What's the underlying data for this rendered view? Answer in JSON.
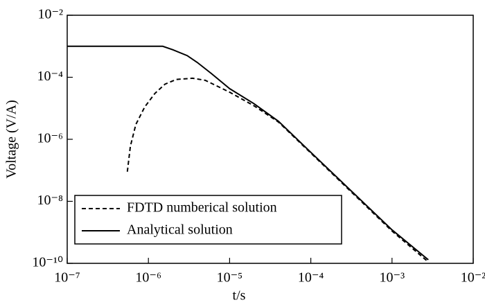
{
  "chart_data": {
    "type": "line",
    "xlabel": "t/s",
    "ylabel": "Voltage (V/A)",
    "log_x": true,
    "log_y": true,
    "legend": "lower left",
    "xlim": [
      1e-07,
      0.01
    ],
    "xticks": [
      {
        "value": 1e-07,
        "label": "10⁻⁷"
      },
      {
        "value": 1e-06,
        "label": "10⁻⁶"
      },
      {
        "value": 1e-05,
        "label": "10⁻⁵"
      },
      {
        "value": 0.0001,
        "label": "10⁻⁴"
      },
      {
        "value": 0.001,
        "label": "10⁻³"
      },
      {
        "value": 0.01,
        "label": "10⁻²"
      }
    ],
    "ylim": [
      1e-10,
      0.01
    ],
    "yticks": [
      {
        "value": 1e-10,
        "label": "10⁻¹⁰"
      },
      {
        "value": 1e-08,
        "label": "10⁻⁸"
      },
      {
        "value": 1e-06,
        "label": "10⁻⁶"
      },
      {
        "value": 0.0001,
        "label": "10⁻⁴"
      },
      {
        "value": 0.01,
        "label": "10⁻²"
      }
    ],
    "series": [
      {
        "name": "FDTD numberical solution",
        "color": "#000000",
        "line_style": "dashed",
        "x": [
          5.5e-07,
          6e-07,
          7e-07,
          9e-07,
          1.2e-06,
          1.6e-06,
          2.2e-06,
          3.5e-06,
          5e-06,
          1e-05,
          2e-05,
          4e-05,
          0.0001,
          0.001,
          0.0027
        ],
        "values": [
          9e-08,
          6e-07,
          3e-06,
          1.1e-05,
          3e-05,
          6e-05,
          8.5e-05,
          9.3e-05,
          8e-05,
          3.3e-05,
          1.2e-05,
          3.6e-06,
          3.6e-07,
          1.1e-09,
          1.2e-10
        ]
      },
      {
        "name": "Analytical solution",
        "color": "#000000",
        "line_style": "solid",
        "x": [
          1e-07,
          5e-07,
          1e-06,
          1.5e-06,
          2e-06,
          3e-06,
          4e-06,
          6e-06,
          1e-05,
          2e-05,
          4e-05,
          0.0001,
          0.001,
          0.0028
        ],
        "values": [
          0.001,
          0.001,
          0.001,
          0.001,
          0.00077,
          0.0005,
          0.0003,
          0.00013,
          4.3e-05,
          1.4e-05,
          3.8e-06,
          3.8e-07,
          1.2e-09,
          1.3e-10
        ]
      }
    ]
  }
}
